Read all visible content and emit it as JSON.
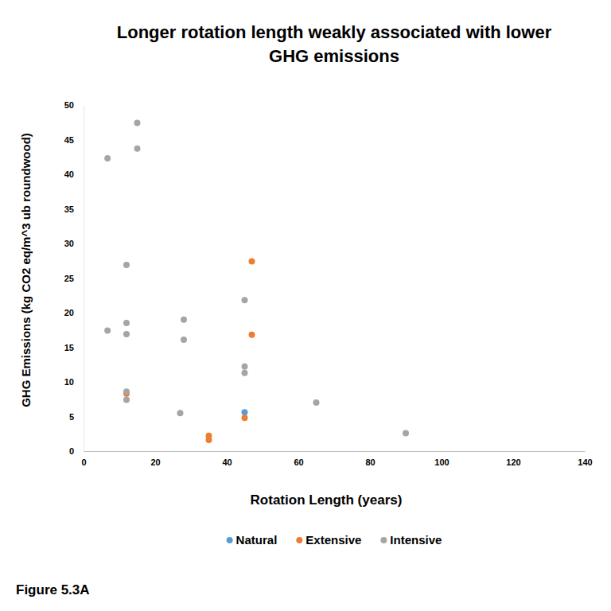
{
  "chart_data": {
    "type": "scatter",
    "title": "Longer rotation length weakly associated with lower GHG emissions",
    "x_label": "Rotation Length (years)",
    "y_label": "GHG Emissions  (kg CO2 eq/m^3 ub roundwood)",
    "annotations": [
      "Figure 5.3A"
    ],
    "series": [
      {
        "name": "Natural",
        "color": "#5b9bd5",
        "marker": "circle",
        "x": [
          45
        ],
        "values": [
          5.6
        ]
      },
      {
        "name": "Extensive",
        "color": "#ed7d31",
        "marker": "circle",
        "x": [
          47,
          47,
          12,
          45,
          35,
          35
        ],
        "values": [
          27.4,
          16.8,
          8.3,
          4.8,
          2.2,
          1.6
        ]
      },
      {
        "name": "Intensive",
        "color": "#a5a5a5",
        "marker": "circle",
        "x": [
          15,
          15,
          6.7,
          12,
          12,
          12,
          6.7,
          12,
          12,
          28,
          28,
          27,
          45,
          45,
          45,
          65,
          90
        ],
        "values": [
          47.4,
          43.7,
          42.3,
          26.9,
          18.5,
          16.9,
          17.4,
          8.6,
          7.4,
          19.0,
          16.1,
          5.5,
          21.8,
          12.2,
          11.3,
          7.0,
          2.6
        ]
      }
    ],
    "xlim": [
      0,
      140
    ],
    "xticks": [
      0,
      20,
      40,
      60,
      80,
      100,
      120,
      140
    ],
    "ylim": [
      0,
      50
    ],
    "yticks": [
      0,
      5,
      10,
      15,
      20,
      25,
      30,
      35,
      40,
      45,
      50
    ],
    "grid": false,
    "legend": "bottom"
  }
}
